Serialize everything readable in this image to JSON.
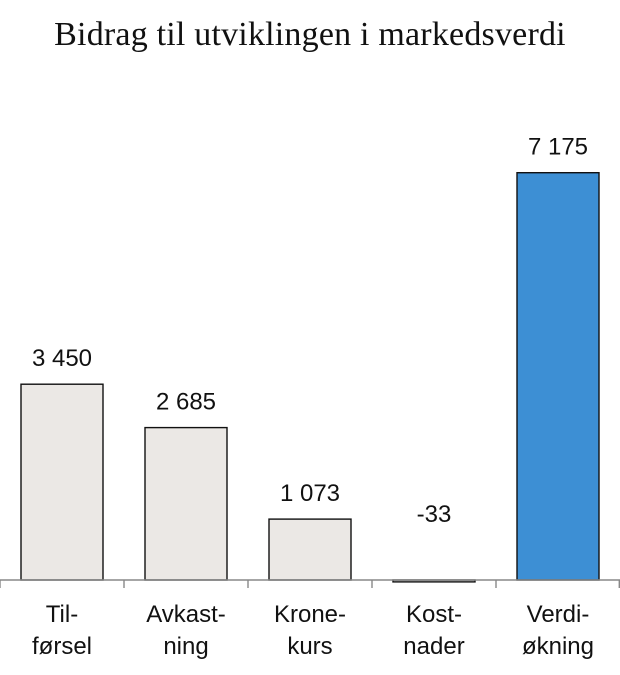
{
  "chart_data": {
    "type": "bar",
    "title": "Bidrag til utviklingen i markedsverdi",
    "xlabel": "",
    "ylabel": "",
    "categories": [
      [
        "Til-",
        "førsel"
      ],
      [
        "Avkast-",
        "ning"
      ],
      [
        "Krone-",
        "kurs"
      ],
      [
        "Kost-",
        "nader"
      ],
      [
        "Verdi-",
        "økning"
      ]
    ],
    "values": [
      3450,
      2685,
      1073,
      -33,
      7175
    ],
    "value_labels": [
      "3 450",
      "2 685",
      "1 073",
      "-33",
      "7 175"
    ],
    "ylim": [
      -100,
      8500
    ],
    "grid": false,
    "colors": {
      "contribution_bar": "#ebe8e5",
      "total_bar": "#3d8fd4",
      "bar_outline": "#111111",
      "axis": "#888888"
    }
  }
}
